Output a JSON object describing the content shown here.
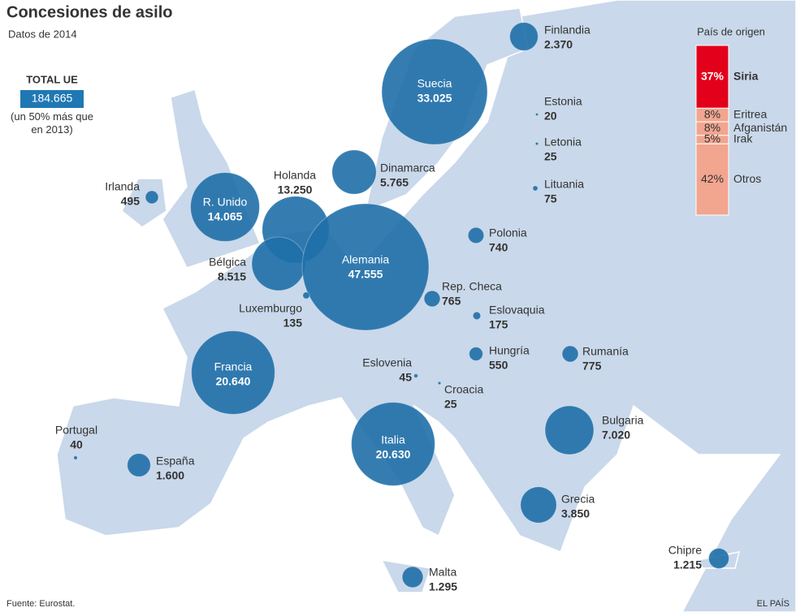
{
  "header": {
    "title": "Concesiones de asilo",
    "subtitle": "Datos de 2014"
  },
  "total": {
    "heading": "TOTAL UE",
    "value": "184.665",
    "note": "(un 50% más que en 2013)"
  },
  "countries": [
    {
      "name": "Finlandia",
      "value": 2370,
      "label": "2.370"
    },
    {
      "name": "Suecia",
      "value": 33025,
      "label": "33.025"
    },
    {
      "name": "Estonia",
      "value": 20,
      "label": "20"
    },
    {
      "name": "Letonia",
      "value": 25,
      "label": "25"
    },
    {
      "name": "Lituania",
      "value": 75,
      "label": "75"
    },
    {
      "name": "Dinamarca",
      "value": 5765,
      "label": "5.765"
    },
    {
      "name": "Irlanda",
      "value": 495,
      "label": "495"
    },
    {
      "name": "R. Unido",
      "value": 14065,
      "label": "14.065"
    },
    {
      "name": "Holanda",
      "value": 13250,
      "label": "13.250"
    },
    {
      "name": "Bélgica",
      "value": 8515,
      "label": "8.515"
    },
    {
      "name": "Alemania",
      "value": 47555,
      "label": "47.555"
    },
    {
      "name": "Luxemburgo",
      "value": 135,
      "label": "135"
    },
    {
      "name": "Polonia",
      "value": 740,
      "label": "740"
    },
    {
      "name": "Rep. Checa",
      "value": 765,
      "label": "765"
    },
    {
      "name": "Eslovaquia",
      "value": 175,
      "label": "175"
    },
    {
      "name": "Hungría",
      "value": 550,
      "label": "550"
    },
    {
      "name": "Rumanía",
      "value": 775,
      "label": "775"
    },
    {
      "name": "Francia",
      "value": 20640,
      "label": "20.640"
    },
    {
      "name": "Eslovenia",
      "value": 45,
      "label": "45"
    },
    {
      "name": "Croacia",
      "value": 25,
      "label": "25"
    },
    {
      "name": "Italia",
      "value": 20630,
      "label": "20.630"
    },
    {
      "name": "Bulgaria",
      "value": 7020,
      "label": "7.020"
    },
    {
      "name": "Portugal",
      "value": 40,
      "label": "40"
    },
    {
      "name": "España",
      "value": 1600,
      "label": "1.600"
    },
    {
      "name": "Grecia",
      "value": 3850,
      "label": "3.850"
    },
    {
      "name": "Malta",
      "value": 1295,
      "label": "1.295"
    },
    {
      "name": "Chipre",
      "value": 1215,
      "label": "1.215"
    }
  ],
  "origin": {
    "title": "País de origen",
    "items": [
      {
        "name": "Siria",
        "value": 37,
        "label": "37%"
      },
      {
        "name": "Eritrea",
        "value": 8,
        "label": "8%"
      },
      {
        "name": "Afganistán",
        "value": 8,
        "label": "8%"
      },
      {
        "name": "Irak",
        "value": 5,
        "label": "5%"
      },
      {
        "name": "Otros",
        "value": 42,
        "label": "42%"
      }
    ]
  },
  "footer": {
    "source": "Fuente: Eurostat.",
    "brand": "EL PAÍS"
  }
}
